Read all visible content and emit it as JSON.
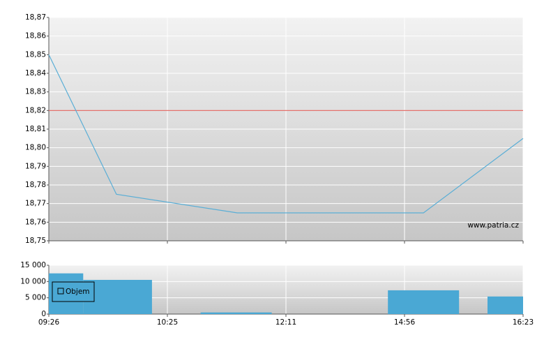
{
  "chart_data": [
    {
      "type": "line",
      "x": [
        0,
        0.57,
        1.59,
        3.16,
        4
      ],
      "series": [
        {
          "color": "#5aaed6",
          "values": [
            18.85,
            18.775,
            18.765,
            18.765,
            18.805
          ]
        }
      ],
      "reference_line": {
        "value": 18.82,
        "color": "#e0605a"
      },
      "watermark": "www.patria.cz",
      "xlim": [
        0,
        4
      ],
      "xticks": [
        {
          "value": 0,
          "label": "09:26"
        },
        {
          "value": 1,
          "label": "10:25"
        },
        {
          "value": 2,
          "label": "12:11"
        },
        {
          "value": 3,
          "label": "14:56"
        },
        {
          "value": 4,
          "label": "16:23"
        }
      ],
      "ylim": [
        18.75,
        18.87
      ],
      "yticks": [
        {
          "value": 18.75,
          "label": "18,75"
        },
        {
          "value": 18.76,
          "label": "18,76"
        },
        {
          "value": 18.77,
          "label": "18,77"
        },
        {
          "value": 18.78,
          "label": "18,78"
        },
        {
          "value": 18.79,
          "label": "18,79"
        },
        {
          "value": 18.8,
          "label": "18,80"
        },
        {
          "value": 18.81,
          "label": "18,81"
        },
        {
          "value": 18.82,
          "label": "18,82"
        },
        {
          "value": 18.83,
          "label": "18,83"
        },
        {
          "value": 18.84,
          "label": "18,84"
        },
        {
          "value": 18.85,
          "label": "18,85"
        },
        {
          "value": 18.86,
          "label": "18,86"
        },
        {
          "value": 18.87,
          "label": "18,87"
        }
      ],
      "grid": true
    },
    {
      "type": "bar",
      "series": [
        {
          "name": "Objem",
          "color": "#4aa8d4",
          "values": [
            12500,
            10500,
            500,
            7300,
            5400
          ],
          "x_start": [
            0,
            0.29,
            1.28,
            2.86,
            3.7
          ],
          "x_end": [
            0.29,
            0.87,
            1.88,
            3.46,
            4
          ]
        }
      ],
      "legend": "upper left",
      "xlim": [
        0,
        4
      ],
      "xticks": [
        {
          "value": 0,
          "label": "09:26"
        },
        {
          "value": 1,
          "label": "10:25"
        },
        {
          "value": 2,
          "label": "12:11"
        },
        {
          "value": 3,
          "label": "14:56"
        },
        {
          "value": 4,
          "label": "16:23"
        }
      ],
      "ylim": [
        0,
        15000
      ],
      "yticks": [
        0,
        {
          "value": 5000,
          "label": "5 000"
        },
        {
          "value": 10000,
          "label": "10 000"
        },
        {
          "value": 15000,
          "label": "15 000"
        }
      ],
      "grid": true
    }
  ]
}
